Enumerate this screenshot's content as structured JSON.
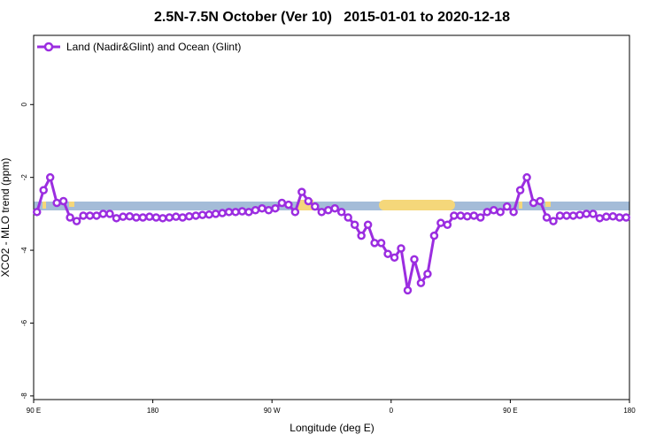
{
  "chart_data": {
    "type": "line",
    "title": "2.5N-7.5N October (Ver 10)   2015-01-01 to 2020-12-18",
    "xlabel": "Longitude (deg E)",
    "ylabel": "XCO2 - MLO trend (ppm)",
    "xlim": [
      90,
      540
    ],
    "ylim": [
      -8.1,
      1.9
    ],
    "xticks": [
      {
        "value": 90,
        "label": "90 E"
      },
      180,
      {
        "value": 270,
        "label": "90 W"
      },
      {
        "value": 360,
        "label": "0"
      },
      {
        "value": 450,
        "label": "90 E"
      },
      {
        "value": 540,
        "label": "180"
      }
    ],
    "yticks": [
      -8,
      -6,
      -4,
      -2,
      0
    ],
    "legend": "top-left",
    "x": [
      92.5,
      97.5,
      102.5,
      107.5,
      112.5,
      117.5,
      122.5,
      127.5,
      132.5,
      137.5,
      142.5,
      147.5,
      152.5,
      157.5,
      162.5,
      167.5,
      172.5,
      177.5,
      182.5,
      187.5,
      192.5,
      197.5,
      202.5,
      207.5,
      212.5,
      217.5,
      222.5,
      227.5,
      232.5,
      237.5,
      242.5,
      247.5,
      252.5,
      257.5,
      262.5,
      267.5,
      272.5,
      277.5,
      282.5,
      287.5,
      292.5,
      297.5,
      302.5,
      307.5,
      312.5,
      317.5,
      322.5,
      327.5,
      332.5,
      337.5,
      342.5,
      347.5,
      352.5,
      357.5,
      362.5,
      367.5,
      372.5,
      377.5,
      382.5,
      387.5,
      392.5,
      397.5,
      402.5,
      407.5,
      412.5,
      417.5,
      422.5,
      427.5,
      432.5,
      437.5,
      442.5,
      447.5,
      452.5,
      457.5,
      462.5,
      467.5,
      472.5,
      477.5,
      482.5,
      487.5,
      492.5,
      497.5,
      502.5,
      507.5,
      512.5,
      517.5,
      522.5,
      527.5,
      532.5,
      537.5
    ],
    "series": [
      {
        "name": "Land (Nadir&Glint) and Ocean (Glint)",
        "color": "#9b2de0",
        "values": [
          -2.95,
          -2.35,
          -2.0,
          -2.7,
          -2.65,
          -3.1,
          -3.2,
          -3.05,
          -3.05,
          -3.05,
          -3.0,
          -3.0,
          -3.12,
          -3.08,
          -3.07,
          -3.1,
          -3.1,
          -3.08,
          -3.1,
          -3.12,
          -3.1,
          -3.08,
          -3.1,
          -3.07,
          -3.05,
          -3.03,
          -3.02,
          -3.0,
          -2.98,
          -2.95,
          -2.95,
          -2.93,
          -2.95,
          -2.9,
          -2.85,
          -2.9,
          -2.85,
          -2.7,
          -2.75,
          -2.95,
          -2.4,
          -2.65,
          -2.8,
          -2.95,
          -2.9,
          -2.85,
          -2.95,
          -3.1,
          -3.3,
          -3.6,
          -3.3,
          -3.8,
          -3.8,
          -4.1,
          -4.2,
          -3.95,
          -5.1,
          -4.25,
          -4.9,
          -4.65,
          -3.6,
          -3.25,
          -3.3,
          -3.05,
          -3.05,
          -3.07,
          -3.05,
          -3.1,
          -2.95,
          -2.9,
          -2.95,
          -2.8,
          -2.95,
          -2.35,
          -2.0,
          -2.7,
          -2.65,
          -3.1,
          -3.2,
          -3.05,
          -3.05,
          -3.05,
          -3.03,
          -3.0,
          -3.0,
          -3.12,
          -3.08,
          -3.07,
          -3.1,
          -3.1
        ]
      }
    ]
  }
}
